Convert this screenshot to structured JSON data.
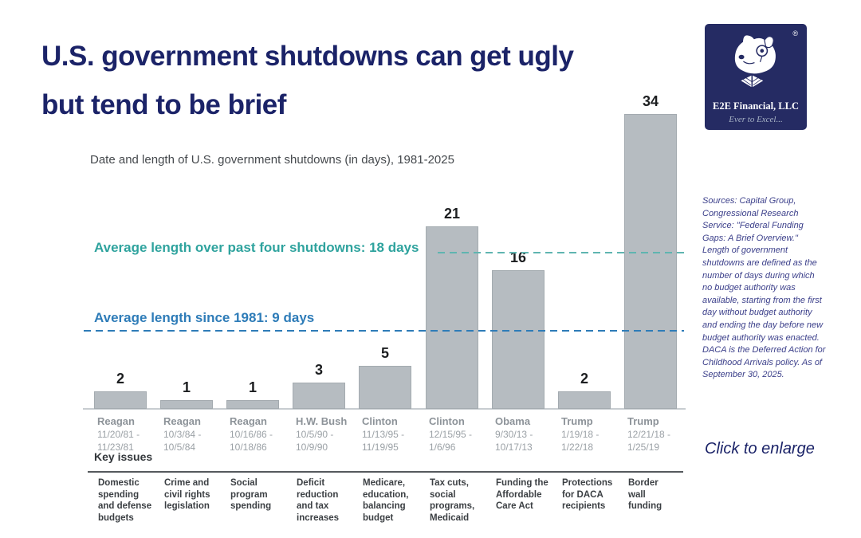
{
  "page": {
    "title_line1": "U.S. government shutdowns can get ugly",
    "title_line2": "but tend to be brief",
    "click_to_enlarge": "Click to enlarge"
  },
  "logo": {
    "company": "E2E Financial, LLC",
    "tagline": "Ever to Excel...",
    "registered_mark": "®",
    "background_color": "#252B63"
  },
  "sources_note": "Sources: Capital Group, Congressional Research Service: \"Federal Funding Gaps: A Brief Overview.\" Length of government shutdowns are defined as the number of days during which no budget authority was available, starting from the first day without budget authority and ending the day before new budget authority was enacted. DACA is the Deferred Action for Childhood Arrivals policy. As of September 30, 2025.",
  "chart_data": {
    "type": "bar",
    "title": "Date and length of U.S. government shutdowns (in days), 1981-2025",
    "ylim": [
      0,
      34
    ],
    "grid": false,
    "bar_color": "#B6BCC1",
    "value_label_color": "#1C1E20",
    "key_issues_label": "Key issues",
    "categories": [
      "Reagan",
      "Reagan",
      "Reagan",
      "H.W. Bush",
      "Clinton",
      "Clinton",
      "Obama",
      "Trump",
      "Trump"
    ],
    "values": [
      2,
      1,
      1,
      3,
      5,
      21,
      16,
      2,
      34
    ],
    "bars": [
      {
        "president": "Reagan",
        "date_line1": "11/20/81 -",
        "date_line2": "11/23/81",
        "days": 2,
        "key_issue": "Domestic\nspending\nand defense\nbudgets"
      },
      {
        "president": "Reagan",
        "date_line1": "10/3/84 -",
        "date_line2": "10/5/84",
        "days": 1,
        "key_issue": "Crime and\ncivil rights\nlegislation"
      },
      {
        "president": "Reagan",
        "date_line1": "10/16/86 -",
        "date_line2": "10/18/86",
        "days": 1,
        "key_issue": "Social\nprogram\nspending"
      },
      {
        "president": "H.W. Bush",
        "date_line1": "10/5/90 -",
        "date_line2": "10/9/90",
        "days": 3,
        "key_issue": "Deficit\nreduction\nand tax\nincreases"
      },
      {
        "president": "Clinton",
        "date_line1": "11/13/95 -",
        "date_line2": "11/19/95",
        "days": 5,
        "key_issue": "Medicare,\neducation,\nbalancing\nbudget"
      },
      {
        "president": "Clinton",
        "date_line1": "12/15/95 -",
        "date_line2": "1/6/96",
        "days": 21,
        "key_issue": "Tax cuts,\nsocial\nprograms,\nMedicaid"
      },
      {
        "president": "Obama",
        "date_line1": "9/30/13 -",
        "date_line2": "10/17/13",
        "days": 16,
        "key_issue": "Funding the\nAffordable\nCare Act"
      },
      {
        "president": "Trump",
        "date_line1": "1/19/18 -",
        "date_line2": "1/22/18",
        "days": 2,
        "key_issue": "Protections\nfor DACA\nrecipients"
      },
      {
        "president": "Trump",
        "date_line1": "12/21/18 -",
        "date_line2": "1/25/19",
        "days": 34,
        "key_issue": "Border\nwall\nfunding"
      }
    ],
    "reference_lines": [
      {
        "label": "Average length over past four shutdowns: 18 days",
        "days": 18,
        "color": "#5FB5B0",
        "text_color": "#2FA39E"
      },
      {
        "label": "Average length since 1981: 9 days",
        "days": 9,
        "color": "#2E7CB8",
        "text_color": "#2E7CB8"
      }
    ]
  }
}
